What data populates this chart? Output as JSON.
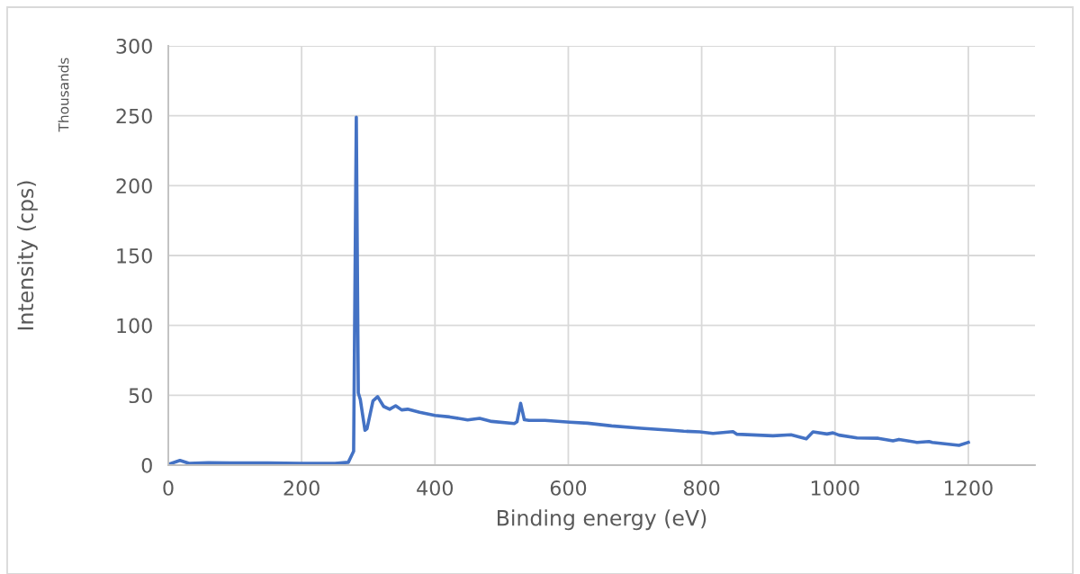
{
  "chart_data": {
    "type": "line",
    "xlabel": "Binding energy (eV)",
    "ylabel": "Intensity (cps)",
    "annotations": [
      "Thousands"
    ],
    "xlim": [
      0,
      1300
    ],
    "xticks": [
      0,
      200,
      400,
      600,
      800,
      1000,
      1200
    ],
    "ylim": [
      0,
      300
    ],
    "yticks": [
      0,
      50,
      100,
      150,
      200,
      250,
      300
    ],
    "grid": true,
    "legend": false,
    "marker": "none",
    "line_style": "solid",
    "series": [
      {
        "color": "#4472c4",
        "x": [
          0,
          17.5,
          31,
          60,
          100,
          150,
          200,
          250,
          270,
          278,
          282,
          285,
          288,
          295,
          298,
          307,
          314,
          323,
          332,
          341,
          350,
          359,
          377,
          400,
          422,
          449,
          467,
          485,
          519,
          523,
          528.5,
          534,
          541,
          565,
          602,
          629,
          665,
          709,
          755,
          773,
          797,
          817,
          847,
          853,
          907,
          934,
          957,
          967,
          988,
          997,
          1006,
          1033,
          1065,
          1087,
          1096,
          1123,
          1141,
          1146,
          1186,
          1200
        ],
        "values": [
          0.5,
          3.4,
          1.3,
          1.8,
          1.5,
          1.5,
          1.3,
          1.3,
          2,
          10,
          249,
          51.7,
          47,
          25,
          26,
          46,
          49,
          42,
          40,
          42.5,
          39.5,
          40,
          37.8,
          35.6,
          34.5,
          32.4,
          33.5,
          31.3,
          29.8,
          31,
          44.2,
          32.5,
          32,
          32,
          30.7,
          30,
          28.1,
          26.4,
          24.9,
          24.3,
          23.8,
          22.7,
          24,
          22.1,
          21,
          21.7,
          18.9,
          23.8,
          22.3,
          23.1,
          21.5,
          19.5,
          19.2,
          17.4,
          18.4,
          16.3,
          16.9,
          16.3,
          14.2,
          16.3
        ]
      }
    ]
  }
}
